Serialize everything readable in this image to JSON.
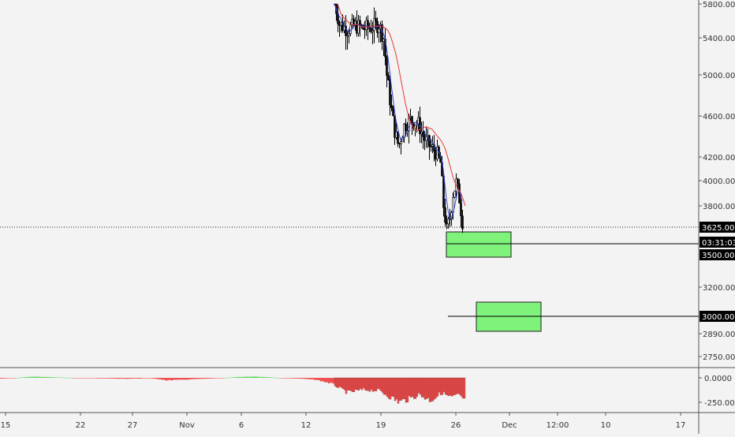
{
  "chart_data": {
    "type": "candlestick",
    "price_scale": {
      "ticks": [
        "5800.00",
        "5400.00",
        "5000.00",
        "4600.00",
        "4200.00",
        "4000.00",
        "3800.00",
        "3200.00",
        "2890.00",
        "2750.00"
      ],
      "tick_values": [
        5800,
        5400,
        5000,
        4600,
        4200,
        4000,
        3800,
        3200,
        2890,
        2750
      ],
      "scale": "log"
    },
    "time_scale": {
      "labels": [
        "15",
        "22",
        "27",
        "Nov",
        "6",
        "12",
        "19",
        "26",
        "Dec",
        "12:00",
        "10",
        "17"
      ]
    },
    "current_price": {
      "label": "3625.00",
      "value": 3625,
      "countdown": "03:31:03"
    },
    "levels": [
      {
        "label": "3500.00",
        "value": 3500
      },
      {
        "label": "3000.00",
        "value": 3000
      }
    ],
    "zones": [
      {
        "from": "Nov 25",
        "to": "Nov 28",
        "high": 3620,
        "low": 3440,
        "color": "#7ff27b"
      },
      {
        "from": "Nov 27",
        "to": "Dec 1",
        "high": 3100,
        "low": 2900,
        "color": "#7ff27b"
      }
    ],
    "candles": {
      "range": "Nov 14 – Nov 26",
      "period_high": 5900,
      "period_low": 3500,
      "last": 3625
    },
    "moving_averages": [
      {
        "color": "#2f3fd1"
      },
      {
        "color": "#e53935"
      }
    ],
    "oscillator": {
      "ticks": [
        "0.0000",
        "-250.0000"
      ],
      "tick_values": [
        0,
        -250
      ],
      "bars_sample": [
        10,
        12,
        14,
        8,
        4,
        2,
        -2,
        -4,
        -6,
        -10,
        -20,
        -30,
        -25,
        -15,
        -8,
        4,
        10,
        12,
        8,
        -10,
        -30,
        -60,
        -120,
        -180,
        -160,
        -210,
        -240,
        -200,
        -160,
        -220,
        -150,
        -90,
        -130,
        -160,
        -180
      ]
    },
    "colors": {
      "up": "#ffffff",
      "down": "#000000",
      "zone": "#7ff27b",
      "hist_pos": "#5cd65c",
      "hist_neg": "#f05050"
    }
  }
}
